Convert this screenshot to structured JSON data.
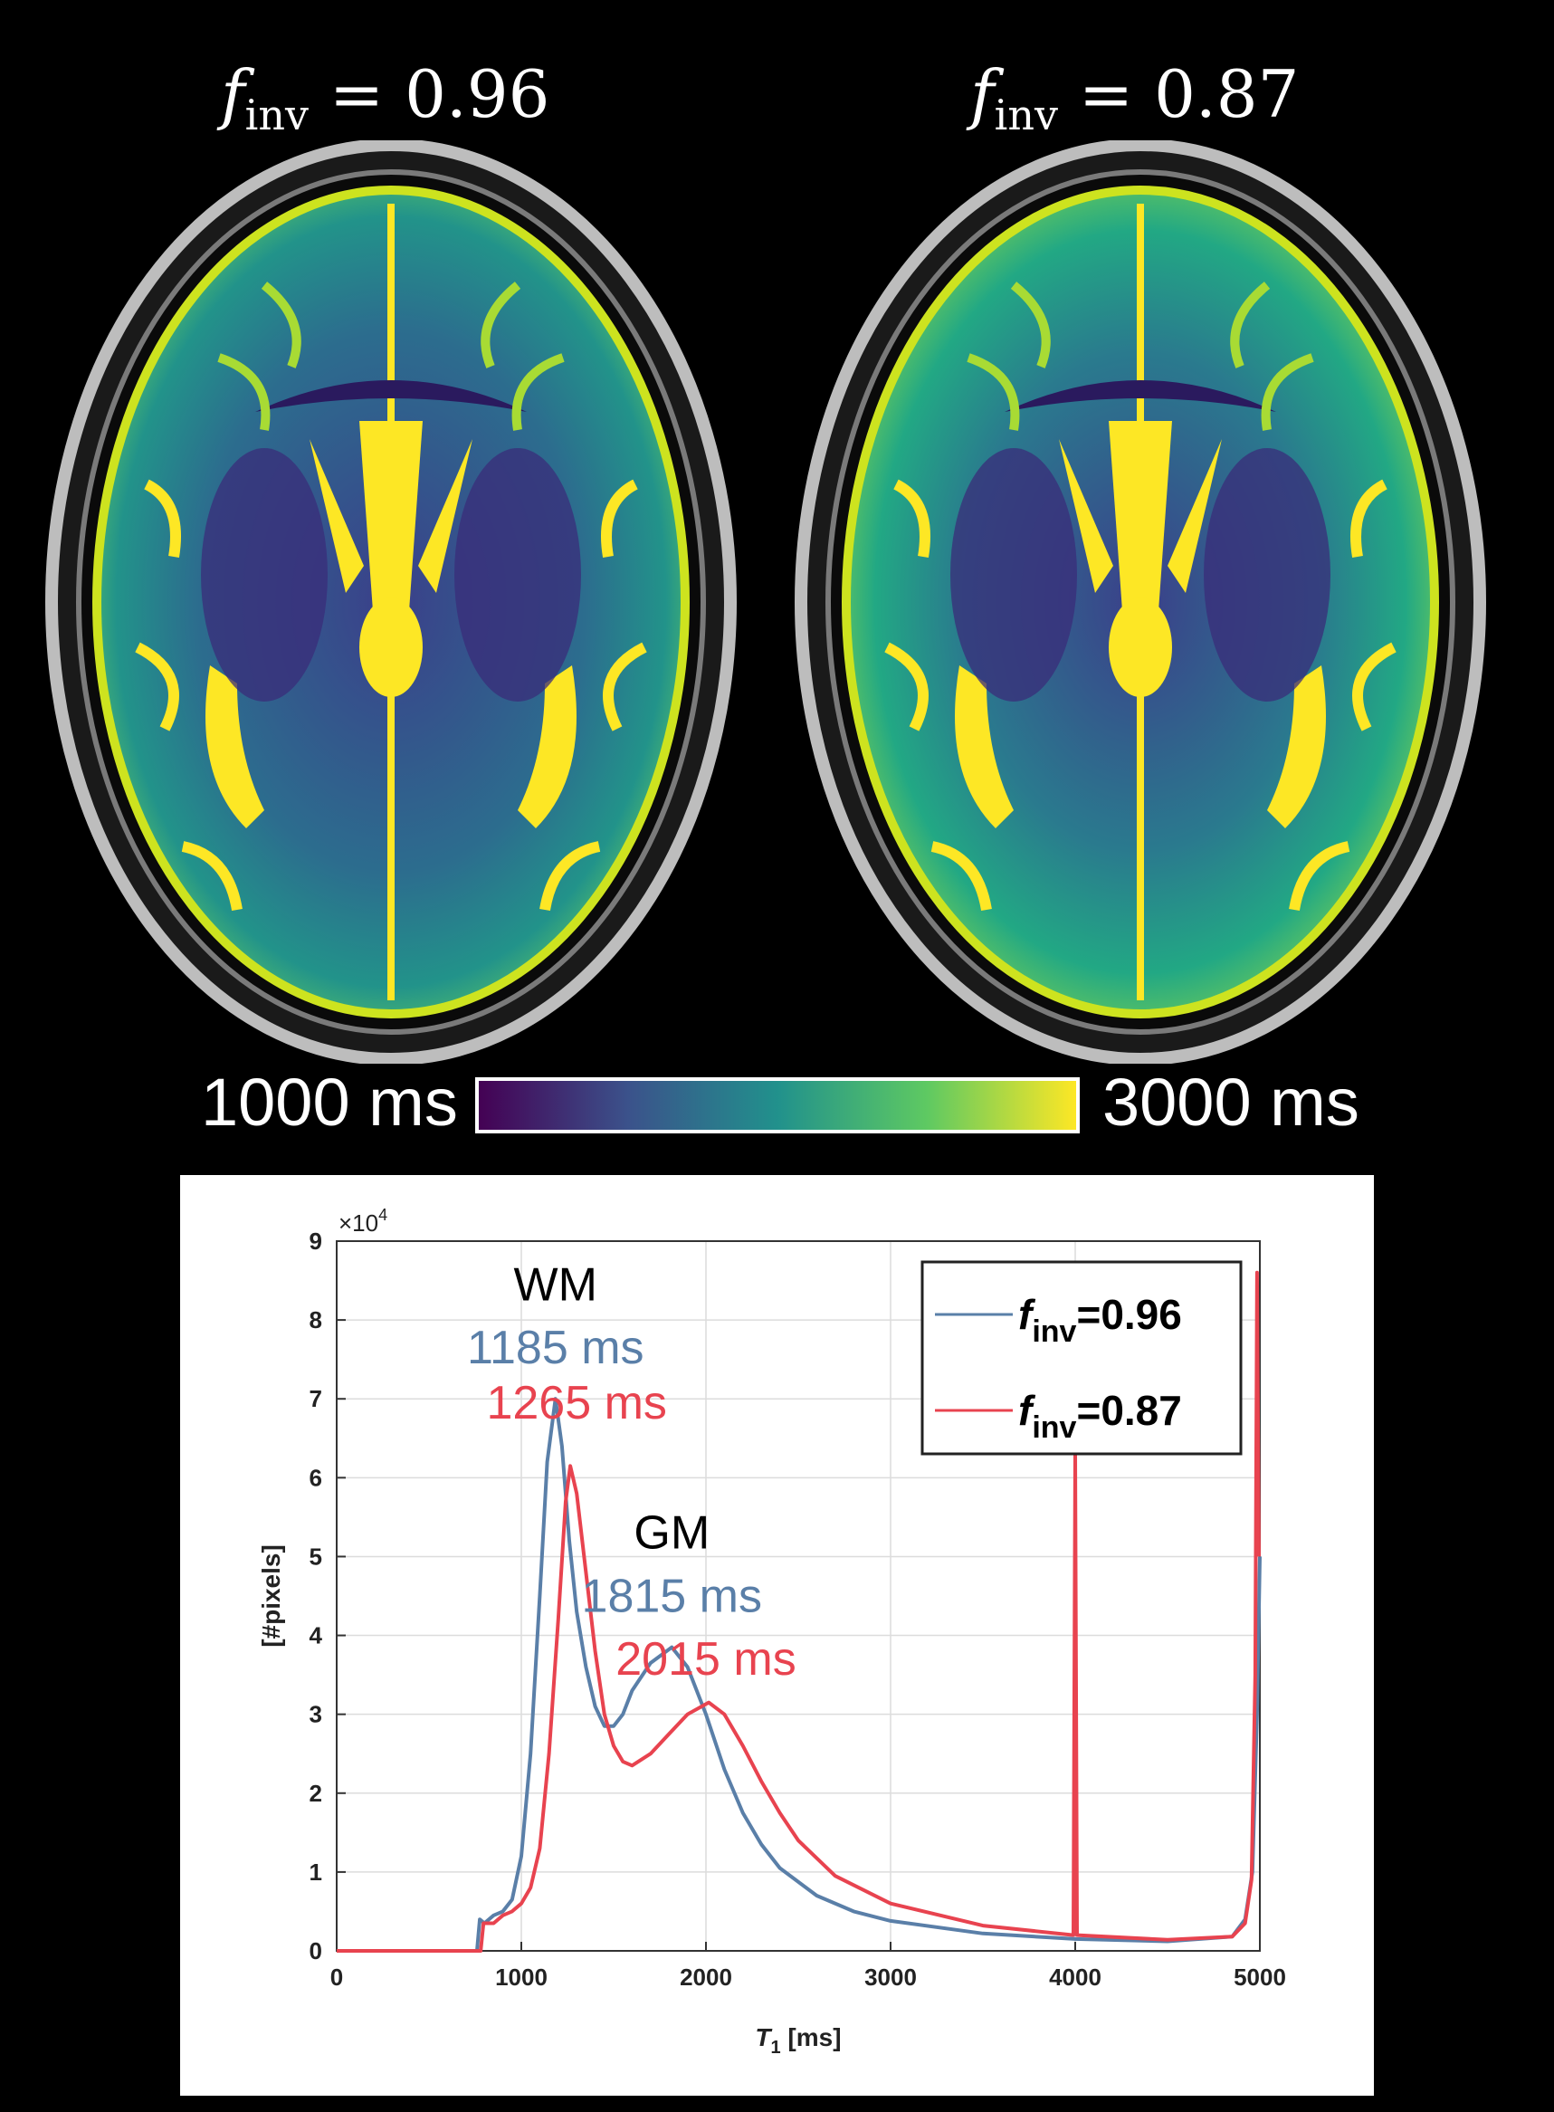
{
  "titles": [
    {
      "symbol": "f",
      "sub": "inv",
      "rest": " = 0.96"
    },
    {
      "symbol": "f",
      "sub": "inv",
      "rest": " = 0.87"
    }
  ],
  "colorbar": {
    "min_label": "1000 ms",
    "max_label": "3000 ms",
    "colors": [
      "#440154",
      "#3b528b",
      "#21918c",
      "#5ec962",
      "#fde725"
    ]
  },
  "chart_data": {
    "type": "line",
    "xlabel": "T",
    "xlabel_sub": "1",
    "xlabel_unit": " [ms]",
    "ylabel": "[#pixels]",
    "y_multiplier": "×10",
    "y_multiplier_exp": "4",
    "xlim": [
      0,
      5000
    ],
    "ylim": [
      0,
      9
    ],
    "xticks": [
      "0",
      "1000",
      "2000",
      "3000",
      "4000",
      "5000"
    ],
    "yticks": [
      "0",
      "1",
      "2",
      "3",
      "4",
      "5",
      "6",
      "7",
      "8",
      "9"
    ],
    "grid": true,
    "legend_position": "top-right",
    "series": [
      {
        "name_symbol": "f",
        "name_sub": "inv",
        "name_rest": "=0.96",
        "color": "#5a7fa8",
        "points": [
          [
            0,
            0
          ],
          [
            760,
            0
          ],
          [
            775,
            0.4
          ],
          [
            800,
            0.35
          ],
          [
            850,
            0.45
          ],
          [
            900,
            0.5
          ],
          [
            950,
            0.65
          ],
          [
            1000,
            1.2
          ],
          [
            1050,
            2.5
          ],
          [
            1100,
            4.5
          ],
          [
            1140,
            6.2
          ],
          [
            1185,
            7.0
          ],
          [
            1220,
            6.4
          ],
          [
            1260,
            5.2
          ],
          [
            1300,
            4.3
          ],
          [
            1350,
            3.6
          ],
          [
            1400,
            3.1
          ],
          [
            1450,
            2.85
          ],
          [
            1500,
            2.85
          ],
          [
            1550,
            3.0
          ],
          [
            1600,
            3.3
          ],
          [
            1700,
            3.65
          ],
          [
            1815,
            3.85
          ],
          [
            1900,
            3.6
          ],
          [
            2000,
            3.0
          ],
          [
            2100,
            2.3
          ],
          [
            2200,
            1.75
          ],
          [
            2300,
            1.35
          ],
          [
            2400,
            1.05
          ],
          [
            2600,
            0.7
          ],
          [
            2800,
            0.5
          ],
          [
            3000,
            0.38
          ],
          [
            3500,
            0.22
          ],
          [
            4000,
            0.15
          ],
          [
            4500,
            0.12
          ],
          [
            4850,
            0.18
          ],
          [
            4920,
            0.4
          ],
          [
            4960,
            1.0
          ],
          [
            4985,
            3.0
          ],
          [
            5000,
            5.0
          ]
        ]
      },
      {
        "name_symbol": "f",
        "name_sub": "inv",
        "name_rest": "=0.87",
        "color": "#e8434f",
        "points": [
          [
            0,
            0
          ],
          [
            780,
            0
          ],
          [
            795,
            0.35
          ],
          [
            850,
            0.35
          ],
          [
            900,
            0.45
          ],
          [
            950,
            0.5
          ],
          [
            1000,
            0.6
          ],
          [
            1050,
            0.8
          ],
          [
            1100,
            1.3
          ],
          [
            1150,
            2.5
          ],
          [
            1200,
            4.2
          ],
          [
            1240,
            5.7
          ],
          [
            1265,
            6.15
          ],
          [
            1300,
            5.8
          ],
          [
            1350,
            4.8
          ],
          [
            1400,
            3.8
          ],
          [
            1450,
            3.0
          ],
          [
            1500,
            2.6
          ],
          [
            1550,
            2.4
          ],
          [
            1600,
            2.35
          ],
          [
            1700,
            2.5
          ],
          [
            1800,
            2.75
          ],
          [
            1900,
            3.0
          ],
          [
            2015,
            3.15
          ],
          [
            2100,
            3.0
          ],
          [
            2200,
            2.6
          ],
          [
            2300,
            2.15
          ],
          [
            2400,
            1.75
          ],
          [
            2500,
            1.4
          ],
          [
            2700,
            0.95
          ],
          [
            3000,
            0.6
          ],
          [
            3500,
            0.32
          ],
          [
            3990,
            0.2
          ],
          [
            4000,
            6.3
          ],
          [
            4010,
            0.2
          ],
          [
            4500,
            0.14
          ],
          [
            4850,
            0.18
          ],
          [
            4920,
            0.35
          ],
          [
            4955,
            0.9
          ],
          [
            4975,
            3.5
          ],
          [
            4985,
            8.6
          ],
          [
            4995,
            5.0
          ]
        ]
      }
    ],
    "annotations": [
      {
        "text": "WM",
        "x": 1185,
        "y": 8.25,
        "color": "#000000"
      },
      {
        "text": "1185 ms",
        "x": 1185,
        "y": 7.45,
        "color": "#5a7fa8"
      },
      {
        "text": "1265 ms",
        "x": 1300,
        "y": 6.75,
        "color": "#e8434f"
      },
      {
        "text": "GM",
        "x": 1815,
        "y": 5.1,
        "color": "#000000"
      },
      {
        "text": "1815 ms",
        "x": 1815,
        "y": 4.3,
        "color": "#5a7fa8"
      },
      {
        "text": "2015 ms",
        "x": 2000,
        "y": 3.5,
        "color": "#e8434f"
      }
    ]
  }
}
